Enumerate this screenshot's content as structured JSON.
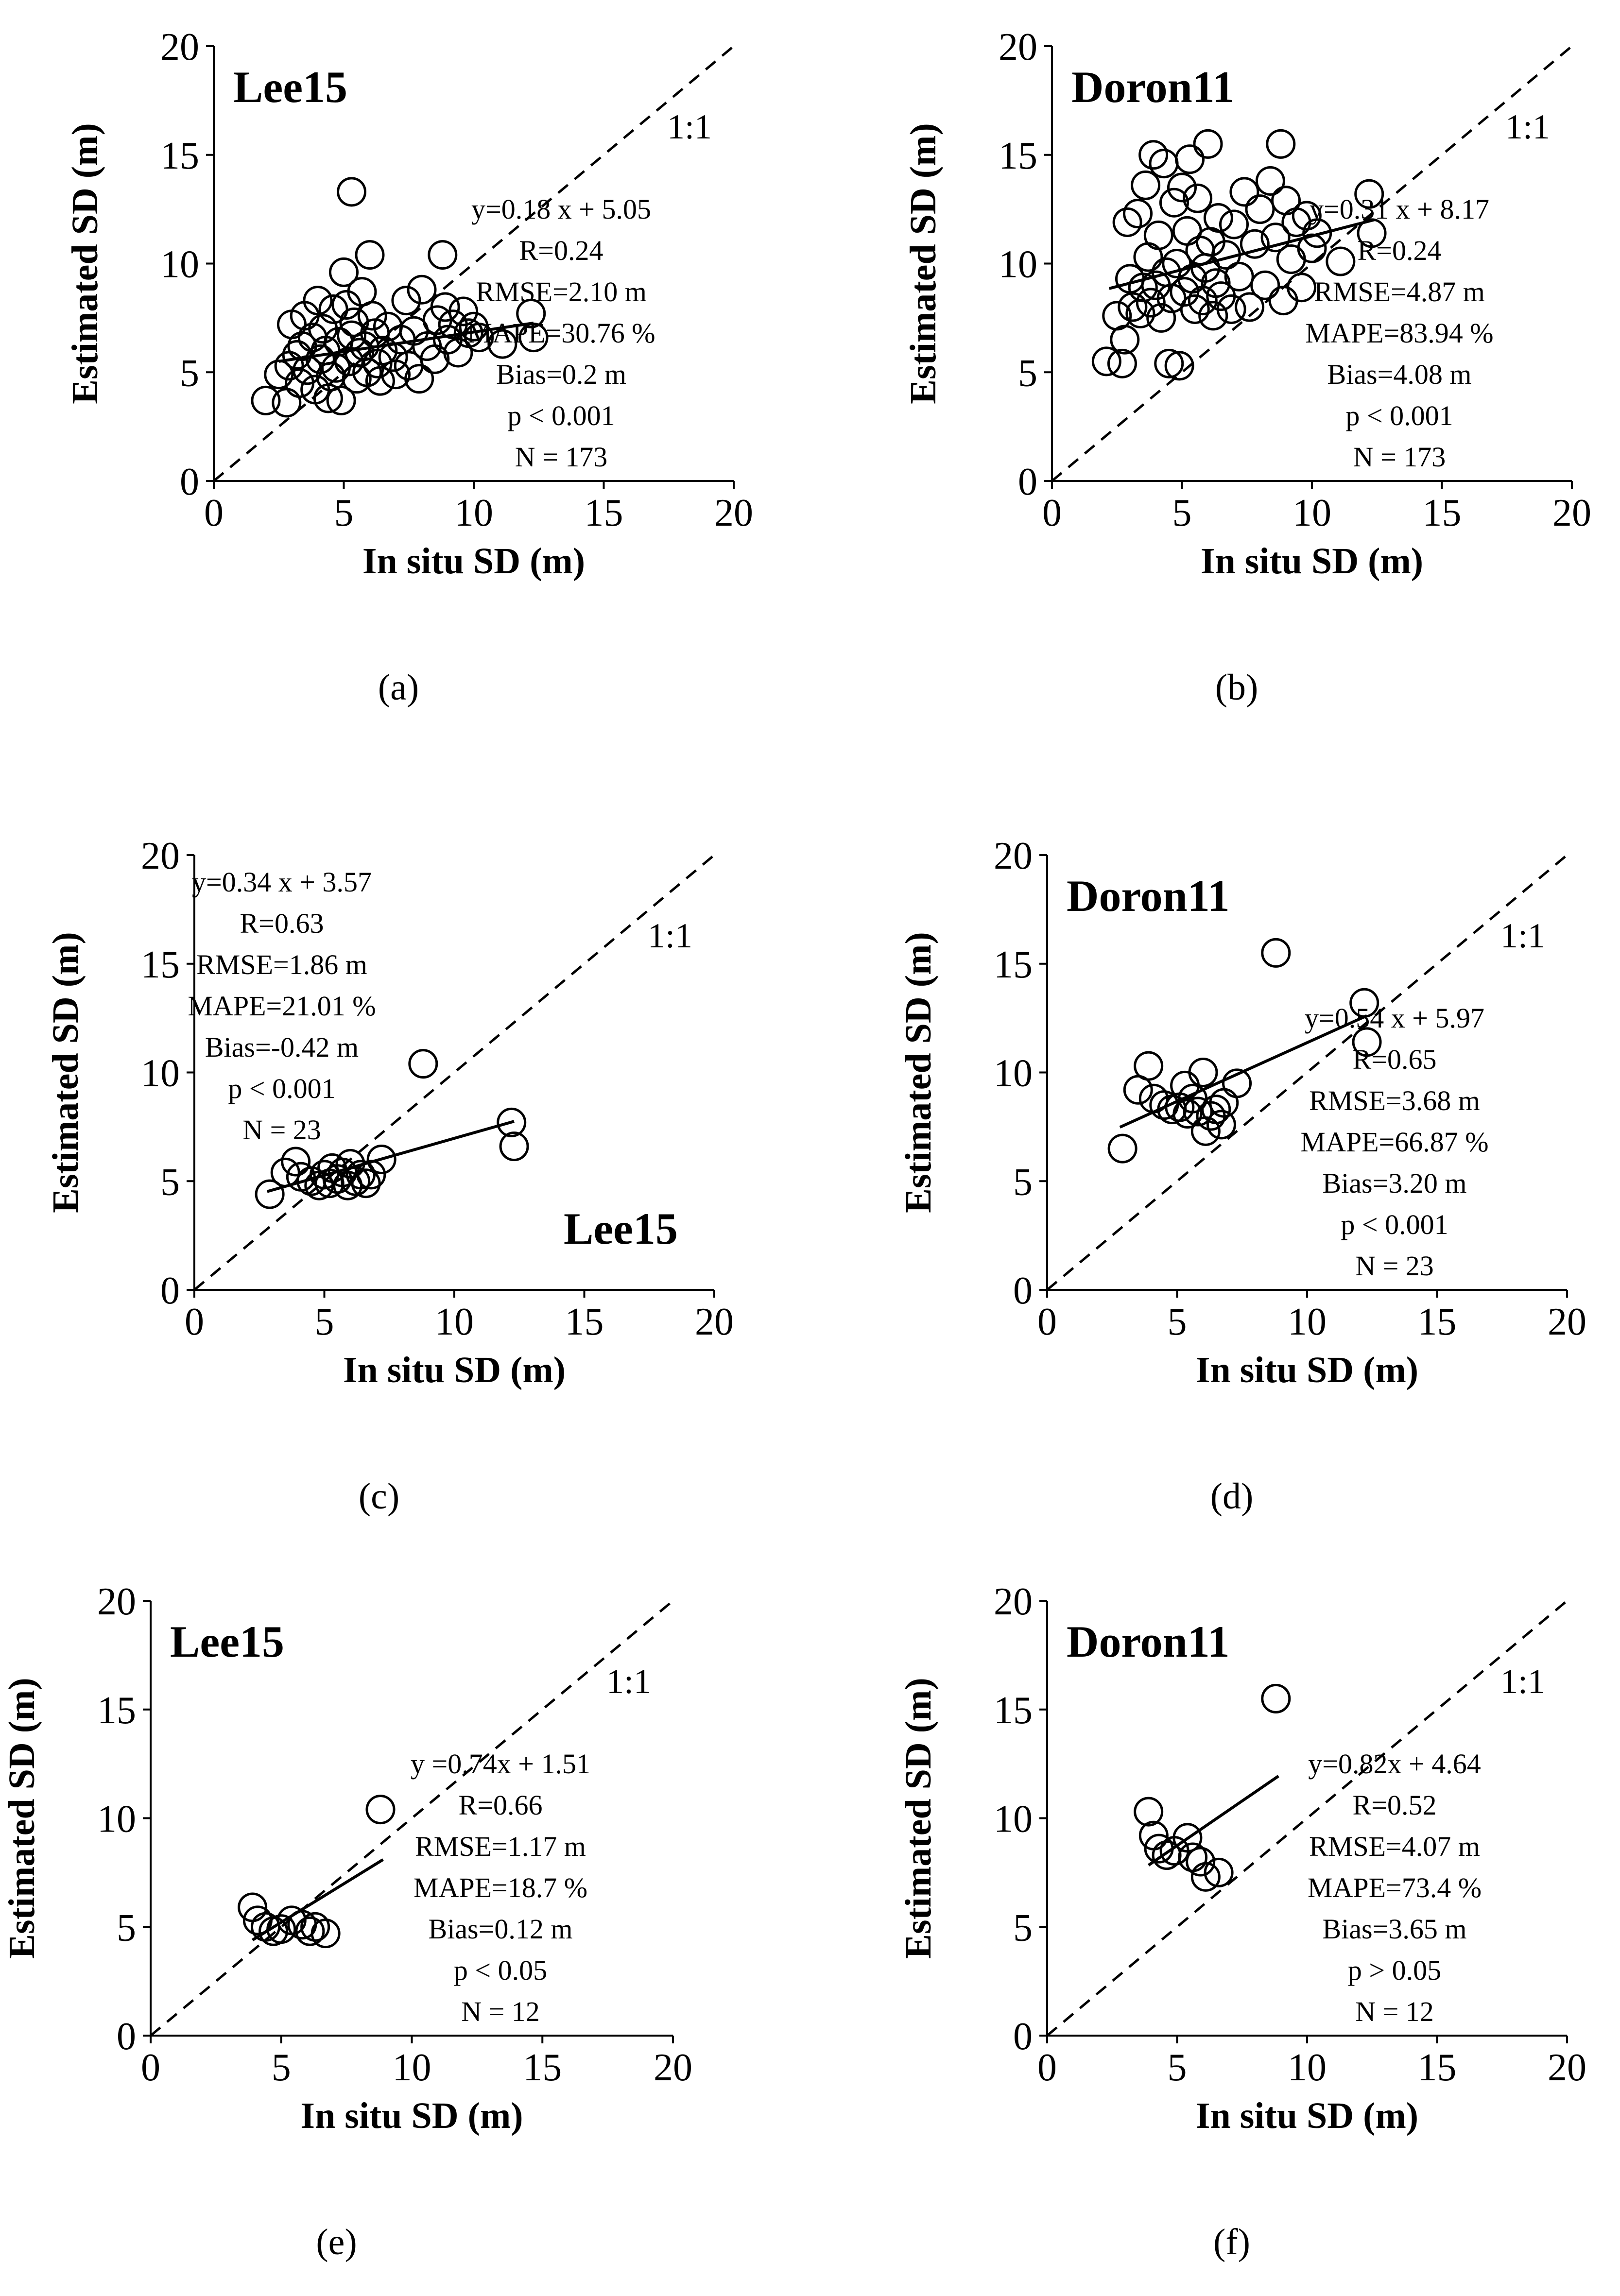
{
  "figure": {
    "background": "#ffffff",
    "ink": "#000000"
  },
  "chart_data": [
    {
      "panel_label": "(a)",
      "type": "scatter",
      "model_label": "Lee15",
      "model_label_position": "top-left",
      "xlabel": "In situ SD (m)",
      "ylabel": "Estimated SD (m)",
      "xlim": [
        0,
        20
      ],
      "ylim": [
        0,
        20
      ],
      "xticks": [
        "0",
        "5",
        "10",
        "15",
        "20"
      ],
      "yticks": [
        "0",
        "5",
        "10",
        "15",
        "20"
      ],
      "one_to_one_label": "1:1",
      "stats": [
        "y=0.18 x + 5.05",
        "R=0.24",
        "RMSE=2.10 m",
        "MAPE=30.76 %",
        "Bias=0.2 m",
        "p < 0.001",
        "N = 173"
      ],
      "fit": {
        "slope": 0.18,
        "intercept": 5.05,
        "x_range": [
          2.5,
          12.3
        ]
      },
      "points": [
        [
          2.0,
          3.7
        ],
        [
          2.5,
          4.9
        ],
        [
          2.8,
          3.6
        ],
        [
          2.9,
          5.3
        ],
        [
          3.0,
          7.2
        ],
        [
          3.2,
          5.8
        ],
        [
          3.3,
          4.5
        ],
        [
          3.4,
          6.2
        ],
        [
          3.5,
          7.6
        ],
        [
          3.6,
          5.1
        ],
        [
          3.8,
          6.6
        ],
        [
          3.9,
          4.2
        ],
        [
          4.0,
          8.3
        ],
        [
          4.1,
          5.6
        ],
        [
          4.2,
          7.0
        ],
        [
          4.3,
          6.0
        ],
        [
          4.4,
          3.8
        ],
        [
          4.5,
          4.8
        ],
        [
          4.6,
          7.9
        ],
        [
          4.7,
          5.2
        ],
        [
          4.8,
          6.4
        ],
        [
          4.9,
          3.7
        ],
        [
          5.0,
          9.6
        ],
        [
          5.1,
          8.1
        ],
        [
          5.2,
          5.5
        ],
        [
          5.3,
          13.3
        ],
        [
          5.3,
          6.7
        ],
        [
          5.4,
          7.3
        ],
        [
          5.5,
          4.7
        ],
        [
          5.6,
          5.9
        ],
        [
          5.7,
          8.7
        ],
        [
          5.8,
          6.2
        ],
        [
          5.9,
          5.0
        ],
        [
          6.0,
          10.4
        ],
        [
          6.1,
          7.6
        ],
        [
          6.2,
          6.8
        ],
        [
          6.3,
          5.4
        ],
        [
          6.4,
          4.6
        ],
        [
          6.5,
          6.0
        ],
        [
          6.7,
          7.1
        ],
        [
          6.9,
          5.7
        ],
        [
          7.0,
          4.9
        ],
        [
          7.2,
          6.5
        ],
        [
          7.4,
          8.3
        ],
        [
          7.5,
          5.3
        ],
        [
          7.7,
          6.9
        ],
        [
          7.9,
          4.7
        ],
        [
          8.0,
          8.8
        ],
        [
          8.2,
          6.2
        ],
        [
          8.5,
          5.6
        ],
        [
          8.6,
          7.4
        ],
        [
          8.8,
          10.4
        ],
        [
          8.9,
          8.0
        ],
        [
          9.0,
          6.5
        ],
        [
          9.2,
          7.2
        ],
        [
          9.4,
          5.9
        ],
        [
          9.6,
          7.8
        ],
        [
          9.8,
          6.8
        ],
        [
          10.0,
          7.1
        ],
        [
          10.2,
          6.6
        ],
        [
          11.1,
          6.3
        ],
        [
          12.2,
          7.7
        ],
        [
          12.3,
          6.6
        ]
      ]
    },
    {
      "panel_label": "(b)",
      "type": "scatter",
      "model_label": "Doron11",
      "model_label_position": "top-left",
      "xlabel": "In situ SD (m)",
      "ylabel": "Estimated SD (m)",
      "xlim": [
        0,
        20
      ],
      "ylim": [
        0,
        20
      ],
      "xticks": [
        "0",
        "5",
        "10",
        "15",
        "20"
      ],
      "yticks": [
        "0",
        "5",
        "10",
        "15",
        "20"
      ],
      "one_to_one_label": "1:1",
      "stats": [
        "y=0.31 x + 8.17",
        "R=0.24",
        "RMSE=4.87 m",
        "MAPE=83.94 %",
        "Bias=4.08 m",
        "p < 0.001",
        "N = 173"
      ],
      "fit": {
        "slope": 0.31,
        "intercept": 8.17,
        "x_range": [
          2.2,
          12.4
        ]
      },
      "points": [
        [
          2.1,
          5.5
        ],
        [
          2.5,
          7.6
        ],
        [
          2.7,
          5.4
        ],
        [
          2.8,
          6.5
        ],
        [
          2.9,
          11.9
        ],
        [
          3.0,
          9.3
        ],
        [
          3.1,
          8.0
        ],
        [
          3.3,
          12.3
        ],
        [
          3.4,
          7.7
        ],
        [
          3.5,
          8.9
        ],
        [
          3.6,
          13.6
        ],
        [
          3.7,
          10.3
        ],
        [
          3.8,
          8.2
        ],
        [
          3.9,
          15.0
        ],
        [
          4.0,
          9.0
        ],
        [
          4.1,
          11.3
        ],
        [
          4.2,
          7.5
        ],
        [
          4.3,
          14.6
        ],
        [
          4.4,
          9.6
        ],
        [
          4.5,
          5.4
        ],
        [
          4.6,
          8.4
        ],
        [
          4.7,
          12.8
        ],
        [
          4.8,
          10.0
        ],
        [
          4.9,
          5.3
        ],
        [
          5.0,
          13.5
        ],
        [
          5.1,
          8.7
        ],
        [
          5.2,
          11.5
        ],
        [
          5.3,
          14.8
        ],
        [
          5.4,
          9.3
        ],
        [
          5.5,
          7.9
        ],
        [
          5.6,
          13.0
        ],
        [
          5.7,
          10.6
        ],
        [
          5.8,
          8.3
        ],
        [
          5.9,
          9.8
        ],
        [
          6.0,
          15.5
        ],
        [
          6.1,
          11.0
        ],
        [
          6.2,
          7.6
        ],
        [
          6.3,
          9.1
        ],
        [
          6.4,
          12.1
        ],
        [
          6.5,
          8.5
        ],
        [
          6.7,
          10.4
        ],
        [
          6.9,
          7.9
        ],
        [
          7.0,
          11.8
        ],
        [
          7.2,
          9.4
        ],
        [
          7.4,
          13.3
        ],
        [
          7.6,
          8.0
        ],
        [
          7.8,
          10.9
        ],
        [
          8.0,
          12.5
        ],
        [
          8.2,
          9.0
        ],
        [
          8.4,
          13.8
        ],
        [
          8.6,
          11.2
        ],
        [
          8.8,
          15.5
        ],
        [
          8.9,
          8.3
        ],
        [
          9.0,
          12.9
        ],
        [
          9.2,
          10.2
        ],
        [
          9.4,
          11.9
        ],
        [
          9.6,
          8.9
        ],
        [
          9.8,
          12.2
        ],
        [
          10.0,
          10.7
        ],
        [
          10.2,
          11.4
        ],
        [
          11.1,
          10.1
        ],
        [
          12.2,
          13.2
        ],
        [
          12.3,
          11.4
        ]
      ]
    },
    {
      "panel_label": "(c)",
      "type": "scatter",
      "model_label": "Lee15",
      "model_label_position": "bottom-right",
      "xlabel": "In situ SD (m)",
      "ylabel": "Estimated SD (m)",
      "xlim": [
        0,
        20
      ],
      "ylim": [
        0,
        20
      ],
      "xticks": [
        "0",
        "5",
        "10",
        "15",
        "20"
      ],
      "yticks": [
        "0",
        "5",
        "10",
        "15",
        "20"
      ],
      "one_to_one_label": "1:1",
      "stats": [
        "y=0.34 x + 3.57",
        "R=0.63",
        "RMSE=1.86 m",
        "MAPE=21.01 %",
        "Bias=-0.42 m",
        "p < 0.001",
        "N = 23"
      ],
      "fit": {
        "slope": 0.34,
        "intercept": 3.57,
        "x_range": [
          2.8,
          12.3
        ]
      },
      "points": [
        [
          2.9,
          4.4
        ],
        [
          3.5,
          5.4
        ],
        [
          3.9,
          5.9
        ],
        [
          4.1,
          5.2
        ],
        [
          4.5,
          5.0
        ],
        [
          4.8,
          4.8
        ],
        [
          5.0,
          5.3
        ],
        [
          5.2,
          4.9
        ],
        [
          5.3,
          5.6
        ],
        [
          5.5,
          5.1
        ],
        [
          5.7,
          5.4
        ],
        [
          5.9,
          4.8
        ],
        [
          6.0,
          5.8
        ],
        [
          6.2,
          5.0
        ],
        [
          6.4,
          5.3
        ],
        [
          6.6,
          4.9
        ],
        [
          6.8,
          5.3
        ],
        [
          7.2,
          6.0
        ],
        [
          8.8,
          10.4
        ],
        [
          12.2,
          7.7
        ],
        [
          12.3,
          6.6
        ]
      ]
    },
    {
      "panel_label": "(d)",
      "type": "scatter",
      "model_label": "Doron11",
      "model_label_position": "top-left",
      "xlabel": "In situ SD (m)",
      "ylabel": "Estimated SD (m)",
      "xlim": [
        0,
        20
      ],
      "ylim": [
        0,
        20
      ],
      "xticks": [
        "0",
        "5",
        "10",
        "15",
        "20"
      ],
      "yticks": [
        "0",
        "5",
        "10",
        "15",
        "20"
      ],
      "one_to_one_label": "1:1",
      "stats": [
        "y=0.54 x + 5.97",
        "R=0.65",
        "RMSE=3.68 m",
        "MAPE=66.87 %",
        "Bias=3.20 m",
        "p < 0.001",
        "N = 23"
      ],
      "fit": {
        "slope": 0.54,
        "intercept": 5.97,
        "x_range": [
          2.8,
          12.3
        ]
      },
      "points": [
        [
          2.9,
          6.5
        ],
        [
          3.5,
          9.2
        ],
        [
          3.9,
          10.3
        ],
        [
          4.1,
          8.8
        ],
        [
          4.5,
          8.5
        ],
        [
          4.8,
          8.3
        ],
        [
          5.1,
          8.4
        ],
        [
          5.3,
          9.4
        ],
        [
          5.4,
          8.1
        ],
        [
          5.6,
          8.8
        ],
        [
          5.8,
          8.2
        ],
        [
          6.0,
          10.0
        ],
        [
          6.1,
          7.3
        ],
        [
          6.3,
          8.0
        ],
        [
          6.5,
          8.3
        ],
        [
          6.7,
          7.6
        ],
        [
          6.8,
          8.6
        ],
        [
          7.3,
          9.5
        ],
        [
          8.8,
          15.5
        ],
        [
          12.2,
          13.2
        ],
        [
          12.3,
          11.4
        ]
      ]
    },
    {
      "panel_label": "(e)",
      "type": "scatter",
      "model_label": "Lee15",
      "model_label_position": "top-left",
      "xlabel": "In situ SD (m)",
      "ylabel": "Estimated SD (m)",
      "xlim": [
        0,
        20
      ],
      "ylim": [
        0,
        20
      ],
      "xticks": [
        "0",
        "5",
        "10",
        "15",
        "20"
      ],
      "yticks": [
        "0",
        "5",
        "10",
        "15",
        "20"
      ],
      "one_to_one_label": "1:1",
      "stats": [
        "y =0.74x + 1.51",
        "R=0.66",
        "RMSE=1.17 m",
        "MAPE=18.7 %",
        "Bias=0.12 m",
        "p < 0.05",
        "N = 12"
      ],
      "fit": {
        "slope": 0.74,
        "intercept": 1.51,
        "x_range": [
          3.9,
          8.9
        ]
      },
      "points": [
        [
          3.9,
          5.9
        ],
        [
          4.1,
          5.3
        ],
        [
          4.4,
          5.0
        ],
        [
          4.7,
          4.8
        ],
        [
          5.0,
          4.9
        ],
        [
          5.4,
          5.3
        ],
        [
          5.8,
          5.1
        ],
        [
          6.1,
          4.8
        ],
        [
          6.3,
          5.0
        ],
        [
          6.7,
          4.7
        ],
        [
          8.8,
          10.4
        ]
      ]
    },
    {
      "panel_label": "(f)",
      "type": "scatter",
      "model_label": "Doron11",
      "model_label_position": "top-left",
      "xlabel": "In situ SD (m)",
      "ylabel": "Estimated SD (m)",
      "xlim": [
        0,
        20
      ],
      "ylim": [
        0,
        20
      ],
      "xticks": [
        "0",
        "5",
        "10",
        "15",
        "20"
      ],
      "yticks": [
        "0",
        "5",
        "10",
        "15",
        "20"
      ],
      "one_to_one_label": "1:1",
      "stats": [
        "y=0.82x + 4.64",
        "R=0.52",
        "RMSE=4.07 m",
        "MAPE=73.4 %",
        "Bias=3.65 m",
        "p > 0.05",
        "N = 12"
      ],
      "fit": {
        "slope": 0.82,
        "intercept": 4.64,
        "x_range": [
          3.9,
          8.9
        ]
      },
      "points": [
        [
          3.9,
          10.3
        ],
        [
          4.1,
          9.2
        ],
        [
          4.3,
          8.6
        ],
        [
          4.6,
          8.3
        ],
        [
          4.9,
          8.5
        ],
        [
          5.4,
          9.1
        ],
        [
          5.6,
          8.2
        ],
        [
          5.9,
          8.0
        ],
        [
          6.1,
          7.3
        ],
        [
          6.6,
          7.5
        ],
        [
          8.8,
          15.5
        ]
      ]
    }
  ]
}
